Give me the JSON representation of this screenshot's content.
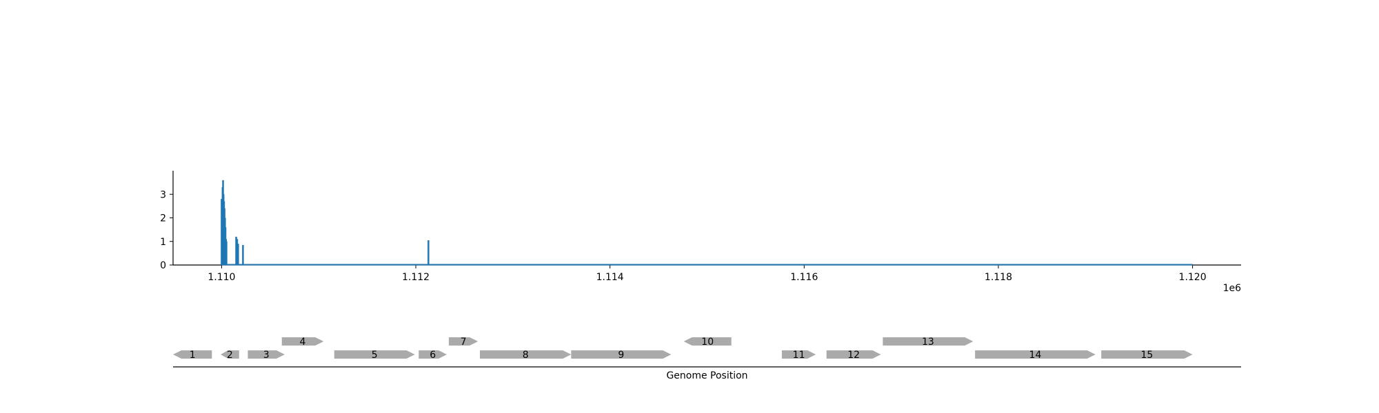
{
  "chart_data": [
    {
      "type": "bar",
      "title": "",
      "xlabel": "",
      "ylabel": "",
      "x_offset_label": "1e6",
      "xlim": [
        1109500,
        1120500
      ],
      "ylim": [
        0,
        4
      ],
      "x_ticks": [
        {
          "value": 1110000,
          "label": "1.110"
        },
        {
          "value": 1112000,
          "label": "1.112"
        },
        {
          "value": 1114000,
          "label": "1.114"
        },
        {
          "value": 1116000,
          "label": "1.116"
        },
        {
          "value": 1118000,
          "label": "1.118"
        },
        {
          "value": 1120000,
          "label": "1.120"
        }
      ],
      "y_ticks": [
        {
          "value": 0,
          "label": "0"
        },
        {
          "value": 1,
          "label": "1"
        },
        {
          "value": 2,
          "label": "2"
        },
        {
          "value": 3,
          "label": "3"
        }
      ],
      "baseline": {
        "x": [
          1110000,
          1120000
        ],
        "y": 0
      },
      "series": [
        {
          "color": "#1f77b4",
          "x": [
            1110000,
            1110010,
            1110015,
            1110020,
            1110025,
            1110030,
            1110035,
            1110040,
            1110045,
            1110050,
            1110150,
            1110160,
            1110170,
            1110220,
            1112130
          ],
          "y": [
            2.8,
            3.3,
            3.6,
            3.0,
            2.7,
            2.4,
            2.0,
            1.6,
            1.1,
            1.0,
            1.2,
            1.1,
            0.9,
            0.85,
            1.05
          ]
        }
      ],
      "grid": false,
      "color": "#1f77b4"
    },
    {
      "type": "gene-track",
      "xlabel": "Genome Position",
      "genes": [
        {
          "label": "1",
          "start": 1109500,
          "end": 1109900,
          "strand": "-",
          "row": 0
        },
        {
          "label": "2",
          "start": 1109990,
          "end": 1110180,
          "strand": "-",
          "row": 0
        },
        {
          "label": "3",
          "start": 1110270,
          "end": 1110650,
          "strand": "+",
          "row": 0
        },
        {
          "label": "4",
          "start": 1110620,
          "end": 1111050,
          "strand": "+",
          "row": 1
        },
        {
          "label": "5",
          "start": 1111160,
          "end": 1111990,
          "strand": "+",
          "row": 0
        },
        {
          "label": "6",
          "start": 1112030,
          "end": 1112320,
          "strand": "+",
          "row": 0
        },
        {
          "label": "7",
          "start": 1112340,
          "end": 1112640,
          "strand": "+",
          "row": 1
        },
        {
          "label": "8",
          "start": 1112660,
          "end": 1113600,
          "strand": "+",
          "row": 0
        },
        {
          "label": "9",
          "start": 1113600,
          "end": 1114630,
          "strand": "+",
          "row": 0
        },
        {
          "label": "10",
          "start": 1114760,
          "end": 1115250,
          "strand": "-",
          "row": 1
        },
        {
          "label": "11",
          "start": 1115770,
          "end": 1116120,
          "strand": "+",
          "row": 0
        },
        {
          "label": "12",
          "start": 1116230,
          "end": 1116790,
          "strand": "+",
          "row": 0
        },
        {
          "label": "13",
          "start": 1116810,
          "end": 1117740,
          "strand": "+",
          "row": 1
        },
        {
          "label": "14",
          "start": 1117760,
          "end": 1119000,
          "strand": "+",
          "row": 0
        },
        {
          "label": "15",
          "start": 1119060,
          "end": 1120000,
          "strand": "+",
          "row": 0
        }
      ],
      "gene_color": "#aaaaaa"
    }
  ]
}
